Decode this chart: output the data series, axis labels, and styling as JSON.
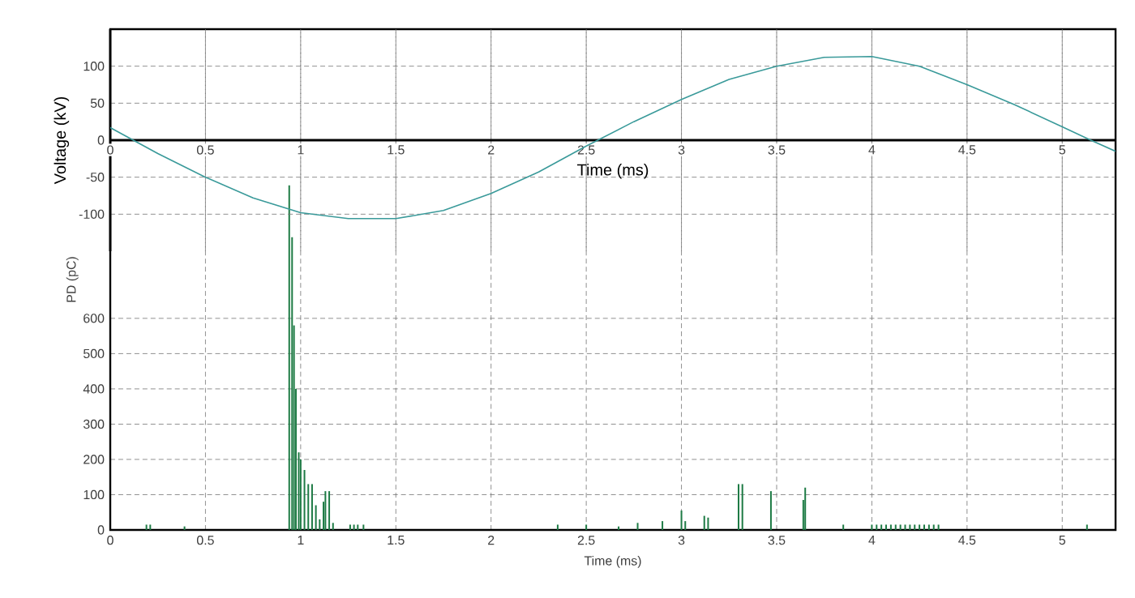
{
  "chart_data": [
    {
      "type": "line",
      "xlabel": "Time (ms)",
      "ylabel": "Voltage (kV)",
      "color": "#3a9a9a",
      "x": [
        0,
        0.25,
        0.5,
        0.75,
        1.0,
        1.25,
        1.5,
        1.75,
        2.0,
        2.25,
        2.5,
        2.75,
        3.0,
        3.25,
        3.5,
        3.75,
        4.0,
        4.25,
        4.5,
        4.75,
        5.0,
        5.15,
        5.28
      ],
      "values": [
        17,
        -18,
        -50,
        -78,
        -98,
        -106,
        -106,
        -95,
        -72,
        -43,
        -8,
        25,
        55,
        82,
        100,
        112,
        113,
        100,
        75,
        48,
        18,
        0,
        -15
      ],
      "xlim": [
        0,
        5.28
      ],
      "ylim": [
        -150,
        150
      ],
      "xticks": [
        0,
        0.5,
        1,
        1.5,
        2,
        2.5,
        3,
        3.5,
        4,
        4.5,
        5
      ],
      "yticks": [
        -100,
        -50,
        0,
        50,
        100
      ],
      "grid": true
    },
    {
      "type": "bar",
      "xlabel": "Time (ms)",
      "ylabel": "PD (pC)",
      "color": "#1e7b45",
      "x": [
        0.19,
        0.21,
        0.39,
        0.94,
        0.955,
        0.965,
        0.975,
        0.99,
        1.0,
        1.02,
        1.04,
        1.06,
        1.08,
        1.1,
        1.12,
        1.13,
        1.15,
        1.17,
        1.26,
        1.28,
        1.3,
        1.33,
        2.35,
        2.5,
        2.67,
        2.77,
        2.9,
        3.0,
        3.02,
        3.12,
        3.14,
        3.3,
        3.32,
        3.47,
        3.64,
        3.65,
        3.85,
        4.0,
        4.025,
        4.05,
        4.075,
        4.1,
        4.125,
        4.15,
        4.175,
        4.2,
        4.225,
        4.25,
        4.275,
        4.3,
        4.325,
        4.35,
        5.13
      ],
      "values": [
        15,
        15,
        10,
        977,
        830,
        580,
        400,
        220,
        200,
        170,
        130,
        130,
        70,
        30,
        80,
        110,
        110,
        20,
        15,
        15,
        15,
        15,
        15,
        15,
        10,
        20,
        25,
        55,
        25,
        40,
        35,
        130,
        130,
        110,
        85,
        120,
        15,
        15,
        15,
        15,
        15,
        15,
        15,
        15,
        15,
        15,
        15,
        15,
        15,
        15,
        15,
        15,
        15
      ],
      "xlim": [
        0,
        5.28
      ],
      "ylim": [
        0,
        1420
      ],
      "xticks": [
        0,
        0.5,
        1,
        1.5,
        2,
        2.5,
        3,
        3.5,
        4,
        4.5,
        5
      ],
      "yticks": [
        0,
        100,
        200,
        300,
        400,
        500,
        600
      ],
      "grid": true
    }
  ]
}
